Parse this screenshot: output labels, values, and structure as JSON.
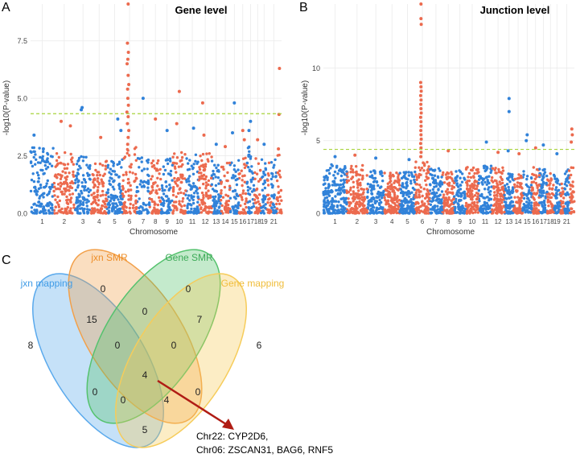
{
  "colors": {
    "blue": "#3182d9",
    "red": "#ec6a4e",
    "threshold": "#a8d43c",
    "jxn_mapping": "#5aa9ec",
    "jxn_smr": "#f2a04a",
    "gene_smr": "#55c26e",
    "gene_mapping": "#f6cc5a",
    "arrow": "#b01c14"
  },
  "chart_data": [
    {
      "type": "scatter",
      "panel_label": "A",
      "title": "Gene level",
      "xlabel": "Chromosome",
      "ylabel": "-log10(P-value)",
      "ylim": [
        0,
        9.1
      ],
      "yticks": [
        "0.0",
        "2.5",
        "5.0",
        "7.5"
      ],
      "ytick_values": [
        0,
        2.5,
        5.0,
        7.5
      ],
      "threshold": 4.33,
      "chromosome_tick_labels": [
        "1",
        "2",
        "3",
        "4",
        "5",
        "6",
        "7",
        "8",
        "9",
        "10",
        "11",
        "12",
        "13",
        "14",
        "15",
        "16",
        "17",
        "18",
        "19",
        "21"
      ],
      "chromosome_tick_values": [
        1,
        2,
        3,
        4,
        5,
        6,
        7,
        8,
        9,
        10,
        11,
        12,
        13,
        14,
        15,
        16,
        17,
        18,
        19,
        21
      ],
      "chromosome_widths": [
        1.8,
        1.6,
        1.3,
        1.2,
        1.2,
        1.1,
        1.0,
        0.9,
        0.9,
        1.0,
        1.0,
        1.0,
        0.7,
        0.7,
        0.7,
        0.6,
        0.6,
        0.5,
        0.5,
        0.3,
        0.4,
        0.4
      ],
      "background_max": [
        2.9,
        2.7,
        2.5,
        2.3,
        2.4,
        2.9,
        2.6,
        2.3,
        2.4,
        2.7,
        2.7,
        2.6,
        2.3,
        2.2,
        2.3,
        2.7,
        2.9,
        2.5,
        2.5,
        2.3,
        2.4,
        2.6
      ],
      "peak_points": [
        {
          "chr": 1,
          "pos": 0.15,
          "y": 3.4
        },
        {
          "chr": 1,
          "pos": 0.55,
          "y": 2.8
        },
        {
          "chr": 2,
          "pos": 0.35,
          "y": 4.0
        },
        {
          "chr": 2,
          "pos": 0.8,
          "y": 3.8
        },
        {
          "chr": 3,
          "pos": 0.4,
          "y": 4.5
        },
        {
          "chr": 3,
          "pos": 0.45,
          "y": 4.6
        },
        {
          "chr": 4,
          "pos": 0.6,
          "y": 3.3
        },
        {
          "chr": 5,
          "pos": 0.7,
          "y": 4.1
        },
        {
          "chr": 5,
          "pos": 0.9,
          "y": 3.6
        },
        {
          "chr": 6,
          "pos": 0.4,
          "y": 9.1
        },
        {
          "chr": 6,
          "pos": 0.35,
          "y": 7.4
        },
        {
          "chr": 6,
          "pos": 0.42,
          "y": 7.0
        },
        {
          "chr": 6,
          "pos": 0.38,
          "y": 6.7
        },
        {
          "chr": 6,
          "pos": 0.33,
          "y": 6.5
        },
        {
          "chr": 6,
          "pos": 0.4,
          "y": 6.0
        },
        {
          "chr": 6,
          "pos": 0.45,
          "y": 5.6
        },
        {
          "chr": 6,
          "pos": 0.36,
          "y": 5.4
        },
        {
          "chr": 6,
          "pos": 0.38,
          "y": 5.0
        },
        {
          "chr": 6,
          "pos": 0.42,
          "y": 4.7
        },
        {
          "chr": 6,
          "pos": 0.32,
          "y": 4.4
        },
        {
          "chr": 6,
          "pos": 0.4,
          "y": 4.2
        },
        {
          "chr": 6,
          "pos": 0.35,
          "y": 3.9
        },
        {
          "chr": 6,
          "pos": 0.45,
          "y": 3.6
        },
        {
          "chr": 6,
          "pos": 0.4,
          "y": 3.3
        },
        {
          "chr": 6,
          "pos": 0.37,
          "y": 3.0
        },
        {
          "chr": 7,
          "pos": 0.5,
          "y": 5.0
        },
        {
          "chr": 8,
          "pos": 0.5,
          "y": 4.1
        },
        {
          "chr": 9,
          "pos": 0.5,
          "y": 3.6
        },
        {
          "chr": 10,
          "pos": 0.5,
          "y": 5.3
        },
        {
          "chr": 10,
          "pos": 0.3,
          "y": 3.9
        },
        {
          "chr": 11,
          "pos": 0.6,
          "y": 3.7
        },
        {
          "chr": 12,
          "pos": 0.3,
          "y": 4.8
        },
        {
          "chr": 12,
          "pos": 0.4,
          "y": 3.4
        },
        {
          "chr": 13,
          "pos": 0.5,
          "y": 3.0
        },
        {
          "chr": 14,
          "pos": 0.5,
          "y": 2.9
        },
        {
          "chr": 15,
          "pos": 0.5,
          "y": 4.8
        },
        {
          "chr": 15,
          "pos": 0.3,
          "y": 3.5
        },
        {
          "chr": 16,
          "pos": 0.5,
          "y": 3.6
        },
        {
          "chr": 16,
          "pos": 0.7,
          "y": 3.2
        },
        {
          "chr": 17,
          "pos": 0.5,
          "y": 4.0
        },
        {
          "chr": 17,
          "pos": 0.3,
          "y": 3.6
        },
        {
          "chr": 18,
          "pos": 0.5,
          "y": 3.2
        },
        {
          "chr": 19,
          "pos": 0.5,
          "y": 3.0
        },
        {
          "chr": 22,
          "pos": 0.6,
          "y": 6.3
        },
        {
          "chr": 22,
          "pos": 0.5,
          "y": 4.3
        },
        {
          "chr": 22,
          "pos": 0.4,
          "y": 2.8
        }
      ]
    },
    {
      "type": "scatter",
      "panel_label": "B",
      "title": "Junction level",
      "xlabel": "Chromosome",
      "ylabel": "-log10(P-value)",
      "ylim": [
        0,
        14.4
      ],
      "yticks": [
        "0",
        "5",
        "10"
      ],
      "ytick_values": [
        0,
        5,
        10
      ],
      "threshold": 4.4,
      "chromosome_tick_labels": [
        "1",
        "2",
        "3",
        "4",
        "5",
        "6",
        "7",
        "8",
        "9",
        "10",
        "11",
        "12",
        "13",
        "14",
        "15",
        "16",
        "17",
        "18",
        "19",
        "21"
      ],
      "chromosome_tick_values": [
        1,
        2,
        3,
        4,
        5,
        6,
        7,
        8,
        9,
        10,
        11,
        12,
        13,
        14,
        15,
        16,
        17,
        18,
        19,
        21
      ],
      "chromosome_widths": [
        1.8,
        1.6,
        1.3,
        1.2,
        1.2,
        1.1,
        1.0,
        0.9,
        0.9,
        1.0,
        1.0,
        1.0,
        0.7,
        0.7,
        0.7,
        0.6,
        0.6,
        0.5,
        0.5,
        0.3,
        0.4,
        0.4
      ],
      "background_max": [
        3.4,
        3.3,
        3.0,
        2.8,
        2.9,
        3.6,
        3.1,
        2.9,
        3.0,
        3.2,
        3.3,
        3.2,
        2.9,
        2.8,
        2.9,
        3.2,
        3.3,
        3.0,
        3.0,
        2.8,
        3.0,
        3.2
      ],
      "peak_points": [
        {
          "chr": 1,
          "pos": 0.5,
          "y": 3.9
        },
        {
          "chr": 2,
          "pos": 0.4,
          "y": 4.0
        },
        {
          "chr": 3,
          "pos": 0.5,
          "y": 3.8
        },
        {
          "chr": 5,
          "pos": 0.6,
          "y": 3.7
        },
        {
          "chr": 6,
          "pos": 0.4,
          "y": 14.4
        },
        {
          "chr": 6,
          "pos": 0.4,
          "y": 13.4
        },
        {
          "chr": 6,
          "pos": 0.42,
          "y": 13.0
        },
        {
          "chr": 6,
          "pos": 0.38,
          "y": 9.0
        },
        {
          "chr": 6,
          "pos": 0.4,
          "y": 8.7
        },
        {
          "chr": 6,
          "pos": 0.42,
          "y": 8.4
        },
        {
          "chr": 6,
          "pos": 0.38,
          "y": 8.1
        },
        {
          "chr": 6,
          "pos": 0.41,
          "y": 7.8
        },
        {
          "chr": 6,
          "pos": 0.39,
          "y": 7.5
        },
        {
          "chr": 6,
          "pos": 0.4,
          "y": 7.2
        },
        {
          "chr": 6,
          "pos": 0.42,
          "y": 6.9
        },
        {
          "chr": 6,
          "pos": 0.38,
          "y": 6.6
        },
        {
          "chr": 6,
          "pos": 0.4,
          "y": 6.3
        },
        {
          "chr": 6,
          "pos": 0.41,
          "y": 6.0
        },
        {
          "chr": 6,
          "pos": 0.39,
          "y": 5.7
        },
        {
          "chr": 6,
          "pos": 0.4,
          "y": 5.4
        },
        {
          "chr": 6,
          "pos": 0.42,
          "y": 5.1
        },
        {
          "chr": 6,
          "pos": 0.38,
          "y": 4.8
        },
        {
          "chr": 6,
          "pos": 0.4,
          "y": 4.5
        },
        {
          "chr": 6,
          "pos": 0.41,
          "y": 4.2
        },
        {
          "chr": 6,
          "pos": 0.39,
          "y": 3.9
        },
        {
          "chr": 8,
          "pos": 0.5,
          "y": 4.3
        },
        {
          "chr": 11,
          "pos": 0.6,
          "y": 4.9
        },
        {
          "chr": 12,
          "pos": 0.5,
          "y": 4.2
        },
        {
          "chr": 13,
          "pos": 0.5,
          "y": 7.9
        },
        {
          "chr": 13,
          "pos": 0.5,
          "y": 7.0
        },
        {
          "chr": 13,
          "pos": 0.4,
          "y": 4.3
        },
        {
          "chr": 14,
          "pos": 0.6,
          "y": 4.1
        },
        {
          "chr": 15,
          "pos": 0.5,
          "y": 5.4
        },
        {
          "chr": 15,
          "pos": 0.4,
          "y": 5.0
        },
        {
          "chr": 16,
          "pos": 0.5,
          "y": 4.5
        },
        {
          "chr": 17,
          "pos": 0.5,
          "y": 4.7
        },
        {
          "chr": 19,
          "pos": 0.5,
          "y": 4.1
        },
        {
          "chr": 22,
          "pos": 0.5,
          "y": 5.8
        },
        {
          "chr": 22,
          "pos": 0.6,
          "y": 5.4
        },
        {
          "chr": 22,
          "pos": 0.4,
          "y": 4.9
        }
      ]
    }
  ],
  "venn": {
    "panel_label": "C",
    "sets": [
      {
        "key": "jxn_mapping",
        "label": "jxn mapping",
        "color": "#5aa9ec",
        "text_color": "#3f9be6"
      },
      {
        "key": "jxn_smr",
        "label": "jxn SMR",
        "color": "#f2a04a",
        "text_color": "#ee8f2a"
      },
      {
        "key": "gene_smr",
        "label": "Gene SMR",
        "color": "#55c26e",
        "text_color": "#3daa58"
      },
      {
        "key": "gene_mapping",
        "label": "Gene mapping",
        "color": "#f6cc5a",
        "text_color": "#f0bd3a"
      }
    ],
    "regions": [
      {
        "sets": "jxn_smr only",
        "value": "0"
      },
      {
        "sets": "gene_smr only",
        "value": "0"
      },
      {
        "sets": "jxn_mapping + jxn_smr",
        "value": "15"
      },
      {
        "sets": "jxn_smr + gene_smr",
        "value": "0"
      },
      {
        "sets": "gene_smr + gene_mapping",
        "value": "7"
      },
      {
        "sets": "jxn_mapping only",
        "value": "8"
      },
      {
        "sets": "jxn_mapping + jxn_smr + gene_smr",
        "value": "0"
      },
      {
        "sets": "jxn_smr + gene_smr + gene_mapping",
        "value": "0"
      },
      {
        "sets": "gene_mapping only",
        "value": "6"
      },
      {
        "sets": "all four",
        "value": "4"
      },
      {
        "sets": "jxn_mapping + gene_smr",
        "value": "0"
      },
      {
        "sets": "jxn_mapping + gene_smr + gene_mapping",
        "value": "0"
      },
      {
        "sets": "jxn_mapping + jxn_smr + gene_mapping",
        "value": "4"
      },
      {
        "sets": "jxn_smr + gene_mapping",
        "value": "0"
      },
      {
        "sets": "jxn_mapping + gene_mapping",
        "value": "5"
      }
    ],
    "annotation_lines": [
      "Chr22: CYP2D6,",
      "Chr06: ZSCAN31, BAG6,  RNF5"
    ]
  }
}
